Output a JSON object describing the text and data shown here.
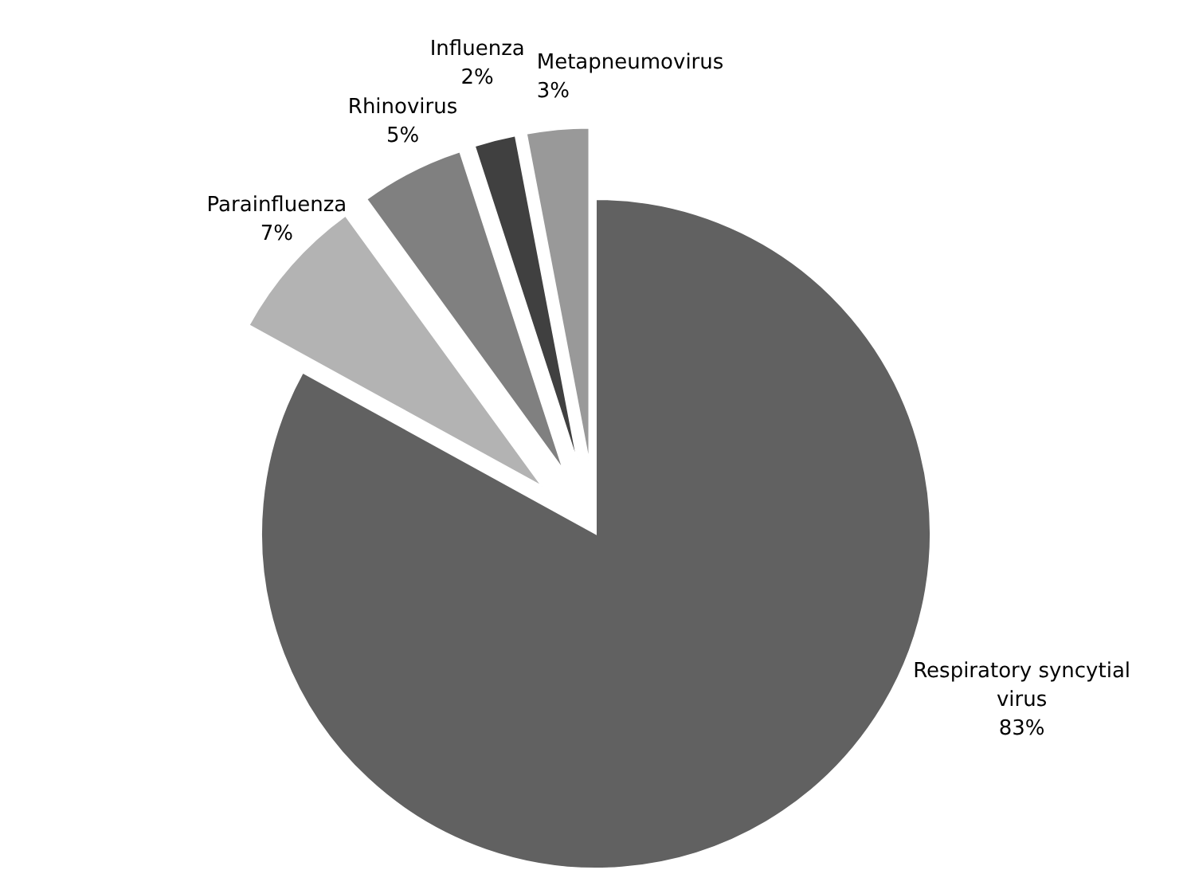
{
  "chart_data": {
    "type": "pie",
    "categories": [
      "Respiratory syncytial virus",
      "Parainfluenza",
      "Rhinovirus",
      "Influenza",
      "Metapneumovirus"
    ],
    "values": [
      83,
      7,
      5,
      2,
      3
    ],
    "colors": [
      "#616161",
      "#b3b3b3",
      "#808080",
      "#404040",
      "#999999"
    ],
    "value_labels": [
      "83%",
      "7%",
      "5%",
      "2%",
      "3%"
    ]
  }
}
